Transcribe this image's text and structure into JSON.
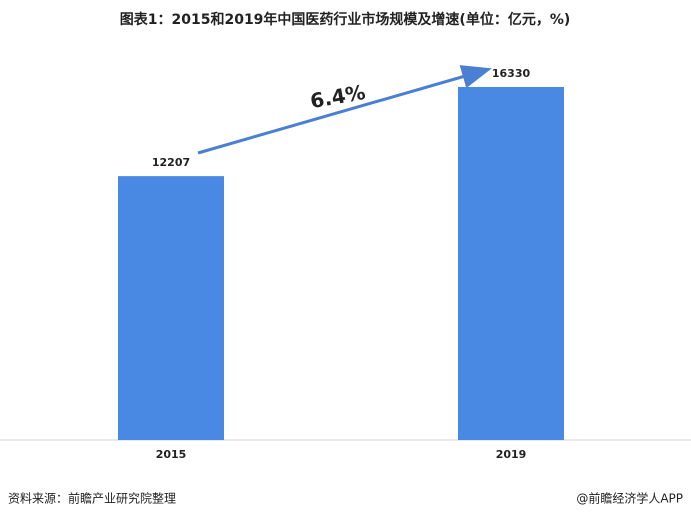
{
  "chart_data": {
    "type": "bar",
    "title": "图表1：2015和2019年中国医药行业市场规模及增速(单位：亿元，%)",
    "categories": [
      "2015",
      "2019"
    ],
    "values": [
      12207,
      16330
    ],
    "color": "#4a89e3",
    "annotation": "6.4%",
    "source": "资料来源：前瞻产业研究院整理",
    "credit": "@前瞻经济学人APP"
  }
}
